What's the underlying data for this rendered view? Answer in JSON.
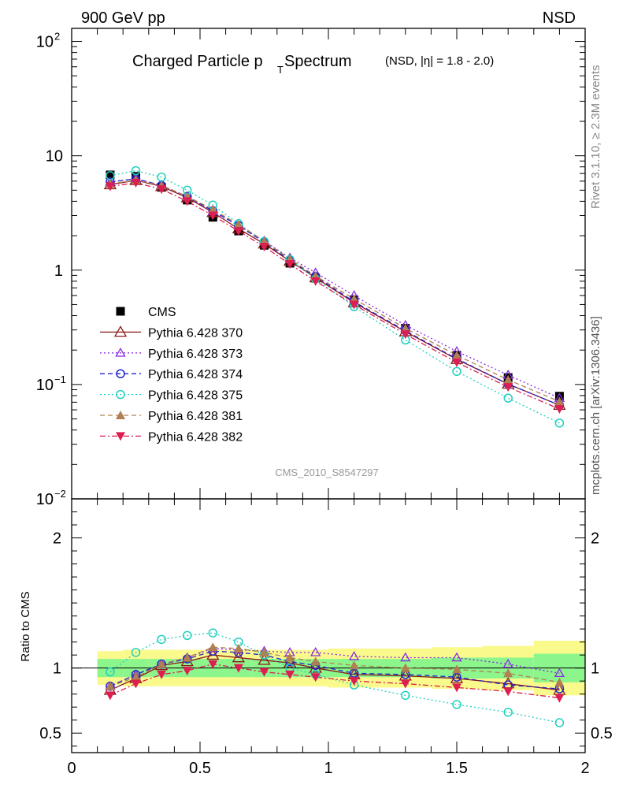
{
  "header": {
    "left": "900 GeV pp",
    "right": "NSD"
  },
  "side_text": {
    "rivet": "Rivet 3.1.10, ≥ 2.3M events",
    "mcplots": "mcplots.cern.ch [arXiv:1306.3436]"
  },
  "title": {
    "main": "Charged Particle p",
    "sub": "T",
    "main2": " Spectrum",
    "note": "(NSD, |η| = 1.8 - 2.0)"
  },
  "watermark": "CMS_2010_S8547297",
  "ratio_ylabel": "Ratio to CMS",
  "colors": {
    "cms": "#000000",
    "p370": "#8b1a1a",
    "p373": "#8a2be2",
    "p374": "#2222cc",
    "p375": "#20d0c0",
    "p381": "#b08050",
    "p382": "#dc1e50",
    "band_stat": "#8cf58c",
    "band_sys": "#fafa8c"
  },
  "chart_data": [
    {
      "type": "scatter",
      "panel": "main",
      "yscale": "log",
      "ylim": [
        0.01,
        130
      ],
      "xlim": [
        0,
        2
      ],
      "y_ticks": [
        "10^-2",
        "10^-1",
        "1",
        "10",
        "10^2"
      ],
      "x": [
        0.15,
        0.25,
        0.35,
        0.45,
        0.55,
        0.65,
        0.75,
        0.85,
        0.95,
        1.1,
        1.3,
        1.5,
        1.7,
        1.9
      ],
      "series": [
        {
          "name": "CMS",
          "values": [
            6.8,
            6.6,
            5.3,
            4.1,
            2.9,
            2.2,
            1.65,
            1.15,
            0.85,
            0.55,
            0.31,
            0.18,
            0.115,
            0.079
          ]
        },
        {
          "name": "Pythia 6.428 370",
          "values": [
            5.6,
            6.1,
            5.4,
            4.3,
            3.2,
            2.3,
            1.7,
            1.2,
            0.86,
            0.52,
            0.29,
            0.166,
            0.101,
            0.066
          ]
        },
        {
          "name": "Pythia 6.428 373",
          "values": [
            5.9,
            6.3,
            5.5,
            4.4,
            3.25,
            2.45,
            1.8,
            1.28,
            0.95,
            0.6,
            0.33,
            0.195,
            0.121,
            0.076
          ]
        },
        {
          "name": "Pythia 6.428 374",
          "values": [
            5.9,
            6.3,
            5.5,
            4.4,
            3.3,
            2.45,
            1.75,
            1.22,
            0.88,
            0.53,
            0.295,
            0.168,
            0.101,
            0.066
          ]
        },
        {
          "name": "Pythia 6.428 375",
          "values": [
            6.7,
            7.4,
            6.5,
            5.0,
            3.7,
            2.55,
            1.78,
            1.24,
            0.84,
            0.48,
            0.245,
            0.13,
            0.076,
            0.046
          ]
        },
        {
          "name": "Pythia 6.428 381",
          "values": [
            5.7,
            6.1,
            5.5,
            4.4,
            3.4,
            2.5,
            1.8,
            1.25,
            0.89,
            0.56,
            0.31,
            0.18,
            0.11,
            0.071
          ]
        },
        {
          "name": "Pythia 6.428 382",
          "values": [
            5.4,
            5.8,
            5.1,
            4.0,
            3.0,
            2.2,
            1.6,
            1.13,
            0.8,
            0.5,
            0.275,
            0.156,
            0.095,
            0.061
          ]
        }
      ]
    },
    {
      "type": "scatter",
      "panel": "ratio",
      "ylabel": "Ratio to CMS",
      "ylim": [
        0.35,
        2.3
      ],
      "xlim": [
        0,
        2
      ],
      "x_ticks": [
        "0",
        "0.5",
        "1",
        "1.5",
        "2"
      ],
      "y_ticks": [
        "0.5",
        "1",
        "2"
      ],
      "x": [
        0.15,
        0.25,
        0.35,
        0.45,
        0.55,
        0.65,
        0.75,
        0.85,
        0.95,
        1.1,
        1.3,
        1.5,
        1.7,
        1.9
      ],
      "bands": [
        {
          "x0": 0.1,
          "x1": 0.2,
          "stat": [
            0.93,
            1.07
          ],
          "sys": [
            0.87,
            1.13
          ]
        },
        {
          "x0": 0.2,
          "x1": 0.3,
          "stat": [
            0.93,
            1.07
          ],
          "sys": [
            0.86,
            1.14
          ]
        },
        {
          "x0": 0.3,
          "x1": 0.4,
          "stat": [
            0.93,
            1.07
          ],
          "sys": [
            0.86,
            1.14
          ]
        },
        {
          "x0": 0.4,
          "x1": 0.5,
          "stat": [
            0.93,
            1.07
          ],
          "sys": [
            0.86,
            1.14
          ]
        },
        {
          "x0": 0.5,
          "x1": 0.6,
          "stat": [
            0.93,
            1.07
          ],
          "sys": [
            0.86,
            1.14
          ]
        },
        {
          "x0": 0.6,
          "x1": 0.7,
          "stat": [
            0.93,
            1.07
          ],
          "sys": [
            0.86,
            1.14
          ]
        },
        {
          "x0": 0.7,
          "x1": 0.8,
          "stat": [
            0.93,
            1.07
          ],
          "sys": [
            0.86,
            1.14
          ]
        },
        {
          "x0": 0.8,
          "x1": 0.9,
          "stat": [
            0.93,
            1.07
          ],
          "sys": [
            0.86,
            1.14
          ]
        },
        {
          "x0": 0.9,
          "x1": 1.0,
          "stat": [
            0.93,
            1.07
          ],
          "sys": [
            0.86,
            1.14
          ]
        },
        {
          "x0": 1.0,
          "x1": 1.2,
          "stat": [
            0.93,
            1.07
          ],
          "sys": [
            0.85,
            1.15
          ]
        },
        {
          "x0": 1.2,
          "x1": 1.4,
          "stat": [
            0.93,
            1.07
          ],
          "sys": [
            0.85,
            1.15
          ]
        },
        {
          "x0": 1.4,
          "x1": 1.6,
          "stat": [
            0.92,
            1.08
          ],
          "sys": [
            0.84,
            1.16
          ]
        },
        {
          "x0": 1.6,
          "x1": 1.8,
          "stat": [
            0.92,
            1.08
          ],
          "sys": [
            0.83,
            1.17
          ]
        },
        {
          "x0": 1.8,
          "x1": 2.0,
          "stat": [
            0.89,
            1.11
          ],
          "sys": [
            0.79,
            1.21
          ]
        }
      ],
      "series": [
        {
          "name": "Pythia 6.428 370",
          "values": [
            0.83,
            0.92,
            1.02,
            1.05,
            1.1,
            1.08,
            1.06,
            1.04,
            1.0,
            0.95,
            0.94,
            0.92,
            0.88,
            0.83
          ]
        },
        {
          "name": "Pythia 6.428 373",
          "values": [
            0.86,
            0.95,
            1.03,
            1.08,
            1.15,
            1.14,
            1.13,
            1.12,
            1.12,
            1.09,
            1.08,
            1.08,
            1.03,
            0.96
          ]
        },
        {
          "name": "Pythia 6.428 374",
          "values": [
            0.86,
            0.95,
            1.03,
            1.07,
            1.13,
            1.12,
            1.1,
            1.05,
            1.02,
            0.96,
            0.95,
            0.93,
            0.87,
            0.84
          ]
        },
        {
          "name": "Pythia 6.428 375",
          "values": [
            0.97,
            1.12,
            1.22,
            1.25,
            1.27,
            1.2,
            1.1,
            1.0,
            0.95,
            0.87,
            0.79,
            0.72,
            0.66,
            0.58
          ]
        },
        {
          "name": "Pythia 6.428 381",
          "values": [
            0.86,
            0.93,
            1.03,
            1.08,
            1.16,
            1.15,
            1.12,
            1.08,
            1.05,
            1.02,
            1.0,
            0.99,
            0.96,
            0.89
          ]
        },
        {
          "name": "Pythia 6.428 382",
          "values": [
            0.79,
            0.88,
            0.95,
            0.98,
            1.03,
            1.0,
            0.97,
            0.95,
            0.93,
            0.9,
            0.88,
            0.85,
            0.82,
            0.77
          ]
        }
      ]
    }
  ],
  "legend": [
    {
      "label": "CMS",
      "key": "cms",
      "marker": "square-filled",
      "dash": "none"
    },
    {
      "label": "Pythia 6.428 370",
      "key": "p370",
      "marker": "triangle-up-open",
      "dash": "solid"
    },
    {
      "label": "Pythia 6.428 373",
      "key": "p373",
      "marker": "triangle-up-open-small",
      "dash": "dotted"
    },
    {
      "label": "Pythia 6.428 374",
      "key": "p374",
      "marker": "circle-open",
      "dash": "dashed"
    },
    {
      "label": "Pythia 6.428 375",
      "key": "p375",
      "marker": "circle-open",
      "dash": "dotted"
    },
    {
      "label": "Pythia 6.428 381",
      "key": "p381",
      "marker": "triangle-up-filled",
      "dash": "dashed"
    },
    {
      "label": "Pythia 6.428 382",
      "key": "p382",
      "marker": "triangle-down-filled",
      "dash": "dashdot"
    }
  ]
}
